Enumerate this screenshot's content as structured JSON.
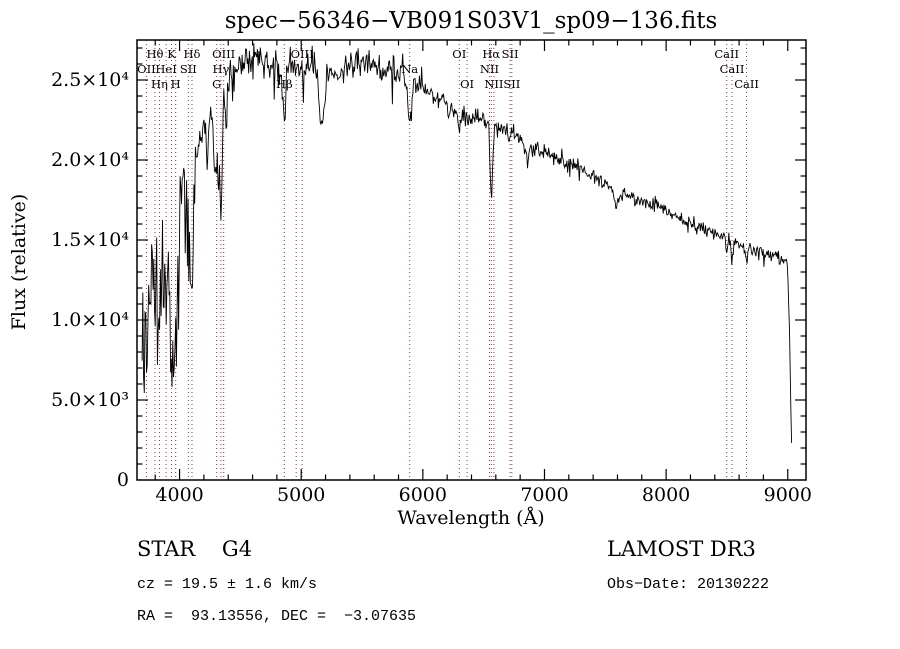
{
  "annotations": {
    "class_line": "STAR    G4",
    "survey": "LAMOST DR3",
    "cz_line": "cz = 19.5 ± 1.6 km/s",
    "obs_date": "Obs−Date: 20130222",
    "radec_line": "RA =  93.13556, DEC =  −3.07635"
  },
  "colors": {
    "spectrum": "#000000",
    "marker_line": "#a83232",
    "frame": "#000000",
    "background": "#ffffff"
  },
  "chart_data": {
    "type": "line",
    "title": "spec−56346−VB091S03V1_sp09−136.fits",
    "xlabel": "Wavelength (Å)",
    "ylabel": "Flux (relative)",
    "xlim": [
      3650,
      9150
    ],
    "ylim": [
      0,
      27500
    ],
    "grid": false,
    "legend": null,
    "x_major_ticks": [
      4000,
      5000,
      6000,
      7000,
      8000,
      9000
    ],
    "x_tick_labels": [
      "4000",
      "5000",
      "6000",
      "7000",
      "8000",
      "9000"
    ],
    "x_minor_step": 200,
    "y_major_ticks": [
      0,
      5000,
      10000,
      15000,
      20000,
      25000
    ],
    "y_tick_labels": [
      "0",
      "5.0×10³",
      "1.0×10⁴",
      "1.5×10⁴",
      "2.0×10⁴",
      "2.5×10⁴"
    ],
    "y_minor_step": 1000,
    "wl_start": 3692,
    "wl_end": 9032,
    "sample_step": 6,
    "seed": 20130222,
    "continuum_anchors": [
      [
        3690,
        11000
      ],
      [
        3720,
        11500
      ],
      [
        3760,
        12500
      ],
      [
        3800,
        13800
      ],
      [
        3840,
        13200
      ],
      [
        3880,
        14200
      ],
      [
        3920,
        14800
      ],
      [
        3960,
        14500
      ],
      [
        4000,
        16800
      ],
      [
        4050,
        18200
      ],
      [
        4100,
        19500
      ],
      [
        4160,
        21200
      ],
      [
        4220,
        22300
      ],
      [
        4280,
        22800
      ],
      [
        4340,
        23400
      ],
      [
        4400,
        25300
      ],
      [
        4480,
        25900
      ],
      [
        4560,
        26300
      ],
      [
        4640,
        26200
      ],
      [
        4720,
        25900
      ],
      [
        4800,
        25900
      ],
      [
        4900,
        26100
      ],
      [
        5000,
        25600
      ],
      [
        5100,
        25900
      ],
      [
        5200,
        25300
      ],
      [
        5300,
        25600
      ],
      [
        5400,
        25900
      ],
      [
        5500,
        26100
      ],
      [
        5600,
        25900
      ],
      [
        5700,
        25600
      ],
      [
        5800,
        25300
      ],
      [
        5900,
        24900
      ],
      [
        6000,
        24500
      ],
      [
        6100,
        23800
      ],
      [
        6200,
        23200
      ],
      [
        6300,
        22900
      ],
      [
        6450,
        22600
      ],
      [
        6600,
        22100
      ],
      [
        6750,
        21500
      ],
      [
        6900,
        20900
      ],
      [
        7100,
        20100
      ],
      [
        7300,
        19400
      ],
      [
        7500,
        18600
      ],
      [
        7700,
        17800
      ],
      [
        7900,
        17100
      ],
      [
        8100,
        16400
      ],
      [
        8300,
        15700
      ],
      [
        8500,
        15100
      ],
      [
        8700,
        14500
      ],
      [
        8850,
        14100
      ],
      [
        8970,
        13800
      ],
      [
        9000,
        13400
      ],
      [
        9015,
        9000
      ],
      [
        9030,
        2300
      ]
    ],
    "absorption_lines": [
      {
        "wavelength": 3712,
        "depth": 0.6,
        "sigma": 5
      },
      {
        "wavelength": 3727,
        "depth": 0.1,
        "sigma": 8
      },
      {
        "wavelength": 3798,
        "depth": 0.22,
        "sigma": 12
      },
      {
        "wavelength": 3835,
        "depth": 0.25,
        "sigma": 12
      },
      {
        "wavelength": 3889,
        "depth": 0.28,
        "sigma": 12
      },
      {
        "wavelength": 3934,
        "depth": 0.42,
        "sigma": 14
      },
      {
        "wavelength": 3968,
        "depth": 0.35,
        "sigma": 14
      },
      {
        "wavelength": 4072,
        "depth": 0.1,
        "sigma": 8
      },
      {
        "wavelength": 4102,
        "depth": 0.25,
        "sigma": 14
      },
      {
        "wavelength": 4227,
        "depth": 0.12,
        "sigma": 8
      },
      {
        "wavelength": 4305,
        "depth": 0.18,
        "sigma": 16
      },
      {
        "wavelength": 4340,
        "depth": 0.26,
        "sigma": 12
      },
      {
        "wavelength": 4383,
        "depth": 0.1,
        "sigma": 7
      },
      {
        "wavelength": 4861,
        "depth": 0.14,
        "sigma": 11
      },
      {
        "wavelength": 5170,
        "depth": 0.14,
        "sigma": 18
      },
      {
        "wavelength": 5892,
        "depth": 0.12,
        "sigma": 14
      },
      {
        "wavelength": 6300,
        "depth": 0.04,
        "sigma": 8
      },
      {
        "wavelength": 6563,
        "depth": 0.2,
        "sigma": 10
      },
      {
        "wavelength": 6867,
        "depth": 0.05,
        "sigma": 15
      },
      {
        "wavelength": 7594,
        "depth": 0.05,
        "sigma": 20
      },
      {
        "wavelength": 8498,
        "depth": 0.05,
        "sigma": 8
      },
      {
        "wavelength": 8542,
        "depth": 0.08,
        "sigma": 9
      },
      {
        "wavelength": 8662,
        "depth": 0.07,
        "sigma": 9
      }
    ],
    "noise_segments": [
      {
        "from": 3650,
        "to": 4150,
        "amp": 1600
      },
      {
        "from": 4150,
        "to": 4450,
        "amp": 800
      },
      {
        "from": 4450,
        "to": 6000,
        "amp": 450
      },
      {
        "from": 6000,
        "to": 7000,
        "amp": 320
      },
      {
        "from": 7000,
        "to": 8000,
        "amp": 260
      },
      {
        "from": 8000,
        "to": 9005,
        "amp": 220
      },
      {
        "from": 9005,
        "to": 9150,
        "amp": 150
      }
    ],
    "downward_spikes": [
      {
        "from": 3650,
        "to": 4150,
        "prob": 0.12,
        "max": 4200
      },
      {
        "from": 4450,
        "to": 5600,
        "prob": 0.05,
        "max": 2200
      },
      {
        "from": 5600,
        "to": 7000,
        "prob": 0.03,
        "max": 1200
      },
      {
        "from": 7000,
        "to": 9000,
        "prob": 0.02,
        "max": 700
      }
    ],
    "line_markers": [
      {
        "label": "Hθ",
        "wavelength": 3798,
        "row": 1
      },
      {
        "label": "K",
        "wavelength": 3934,
        "row": 1
      },
      {
        "label": "Hδ",
        "wavelength": 4102,
        "row": 1
      },
      {
        "label": "OIII",
        "wavelength": 4363,
        "row": 1
      },
      {
        "label": "OIII",
        "wavelength": 5007,
        "row": 1
      },
      {
        "label": "OI",
        "wavelength": 6300,
        "row": 1
      },
      {
        "label": "Hα",
        "wavelength": 6563,
        "row": 1
      },
      {
        "label": "SII",
        "wavelength": 6717,
        "row": 1
      },
      {
        "label": "CaII",
        "wavelength": 8498,
        "row": 1
      },
      {
        "label": "OII",
        "wavelength": 3727,
        "row": 2
      },
      {
        "label": "HeI",
        "wavelength": 3889,
        "row": 2
      },
      {
        "label": "SII",
        "wavelength": 4072,
        "row": 2
      },
      {
        "label": "Hγ",
        "wavelength": 4340,
        "row": 2
      },
      {
        "label": "Na",
        "wavelength": 5892,
        "row": 2
      },
      {
        "label": "NII",
        "wavelength": 6548,
        "row": 2
      },
      {
        "label": "CaII",
        "wavelength": 8542,
        "row": 2
      },
      {
        "label": "Hη",
        "wavelength": 3835,
        "row": 3
      },
      {
        "label": "H",
        "wavelength": 3968,
        "row": 3
      },
      {
        "label": "G",
        "wavelength": 4305,
        "row": 3
      },
      {
        "label": "Hβ",
        "wavelength": 4861,
        "row": 3
      },
      {
        "label": "OI",
        "wavelength": 6364,
        "row": 3
      },
      {
        "label": "NII",
        "wavelength": 6584,
        "row": 3
      },
      {
        "label": "SII",
        "wavelength": 6731,
        "row": 3
      },
      {
        "label": "CaII",
        "wavelength": 8662,
        "row": 3
      },
      {
        "label": "",
        "wavelength": 4959,
        "row": 0
      }
    ]
  }
}
